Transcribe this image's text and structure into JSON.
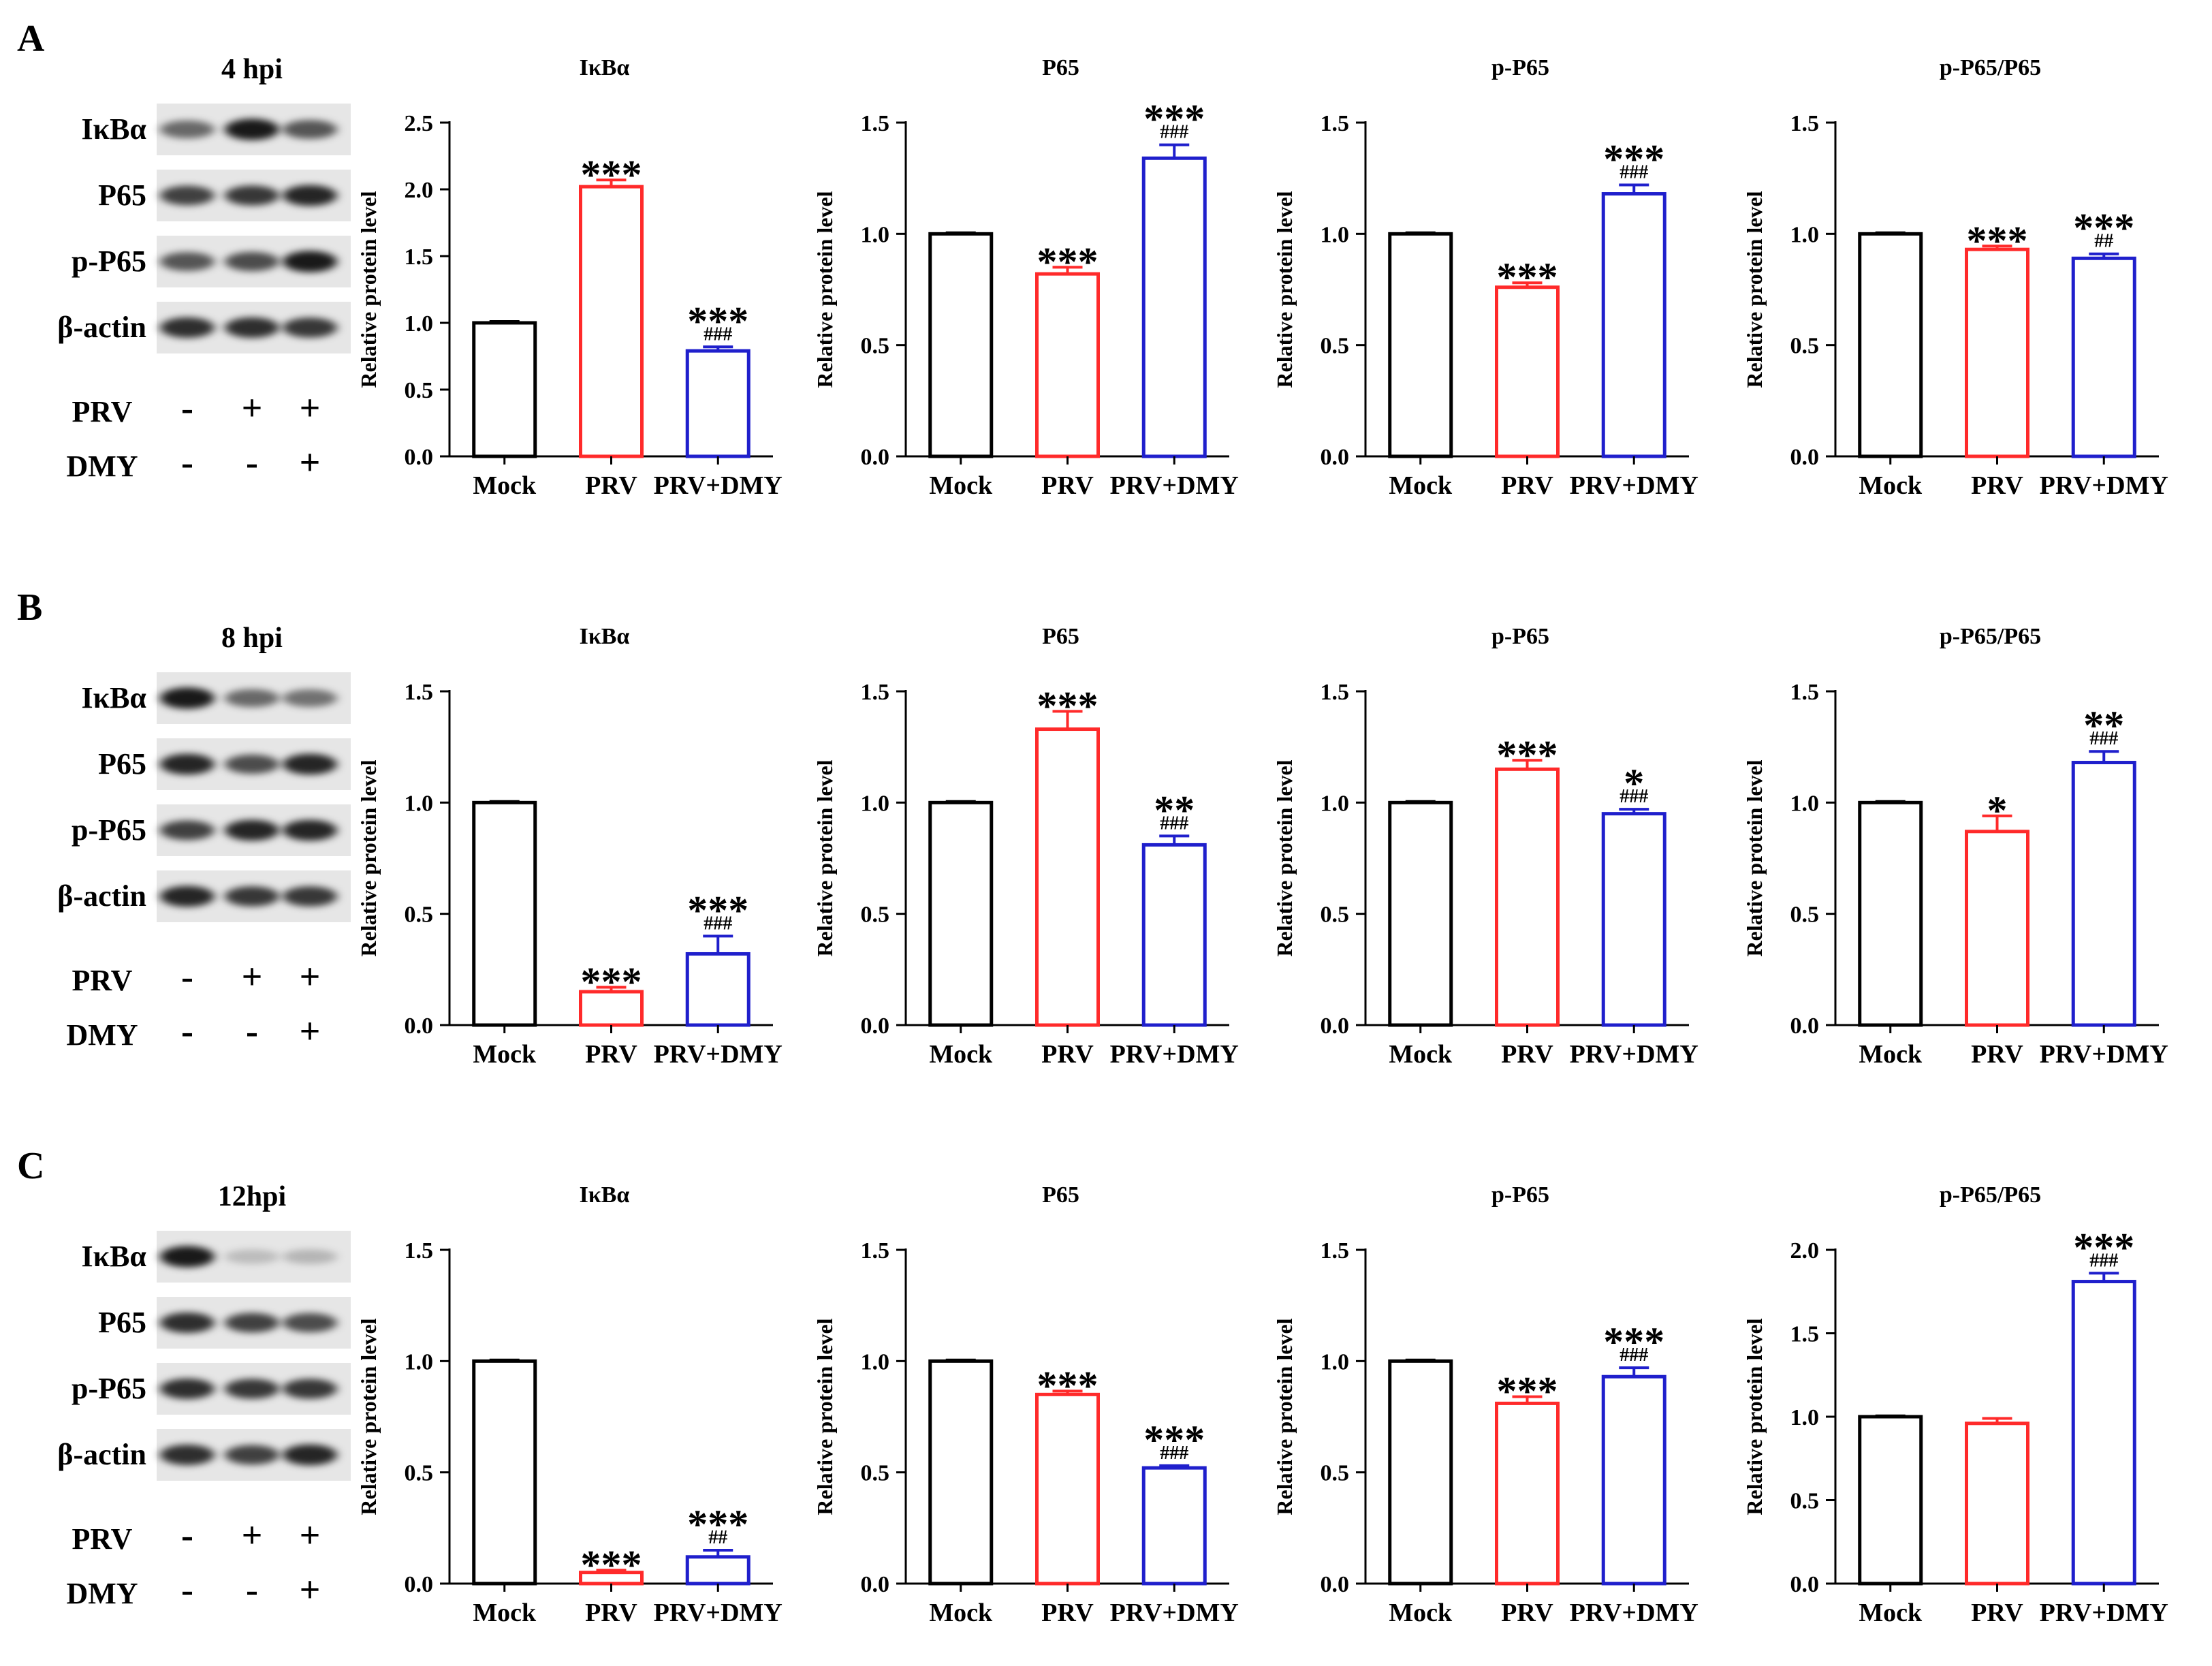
{
  "colors": {
    "Mock": "#000000",
    "PRV": "#ff2a2a",
    "PRV+DMY": "#1f1fcc"
  },
  "chart_data": [
    {
      "panel": "A",
      "timepoint": "4 hpi",
      "blot": {
        "rows": [
          "IκBα",
          "P65",
          "p-P65",
          "β-actin"
        ],
        "treatments": [
          {
            "name": "PRV",
            "signs": [
              "-",
              "+",
              "+"
            ]
          },
          {
            "name": "DMY",
            "signs": [
              "-",
              "-",
              "+"
            ]
          }
        ],
        "intensity": [
          [
            0.55,
            0.95,
            0.65
          ],
          [
            0.75,
            0.8,
            0.9
          ],
          [
            0.65,
            0.7,
            0.95
          ],
          [
            0.85,
            0.85,
            0.8
          ]
        ]
      },
      "charts": [
        {
          "type": "bar",
          "title": "IκBα",
          "ylabel": "Relative protein level",
          "ylim": [
            0,
            2.5
          ],
          "yticks": [
            "0.0",
            "0.5",
            "1.0",
            "1.5",
            "2.0",
            "2.5"
          ],
          "categories": [
            "Mock",
            "PRV",
            "PRV+DMY"
          ],
          "values": [
            1.0,
            2.02,
            0.79
          ],
          "errors": [
            0.01,
            0.05,
            0.03
          ],
          "stars": [
            "",
            "***",
            "***"
          ],
          "hashes": [
            "",
            "",
            "###"
          ]
        },
        {
          "type": "bar",
          "title": "P65",
          "ylabel": "Relative protein level",
          "ylim": [
            0,
            1.5
          ],
          "yticks": [
            "0.0",
            "0.5",
            "1.0",
            "1.5"
          ],
          "categories": [
            "Mock",
            "PRV",
            "PRV+DMY"
          ],
          "values": [
            1.0,
            0.82,
            1.34
          ],
          "errors": [
            0.005,
            0.03,
            0.06
          ],
          "stars": [
            "",
            "***",
            "***"
          ],
          "hashes": [
            "",
            "",
            "###"
          ]
        },
        {
          "type": "bar",
          "title": "p-P65",
          "ylabel": "Relative protein level",
          "ylim": [
            0,
            1.5
          ],
          "yticks": [
            "0.0",
            "0.5",
            "1.0",
            "1.5"
          ],
          "categories": [
            "Mock",
            "PRV",
            "PRV+DMY"
          ],
          "values": [
            1.0,
            0.76,
            1.18
          ],
          "errors": [
            0.005,
            0.02,
            0.04
          ],
          "stars": [
            "",
            "***",
            "***"
          ],
          "hashes": [
            "",
            "",
            "###"
          ]
        },
        {
          "type": "bar",
          "title": "p-P65/P65",
          "ylabel": "Relative protein level",
          "ylim": [
            0,
            1.5
          ],
          "yticks": [
            "0.0",
            "0.5",
            "1.0",
            "1.5"
          ],
          "categories": [
            "Mock",
            "PRV",
            "PRV+DMY"
          ],
          "values": [
            1.0,
            0.93,
            0.89
          ],
          "errors": [
            0.005,
            0.015,
            0.02
          ],
          "stars": [
            "",
            "***",
            "***"
          ],
          "hashes": [
            "",
            "",
            "##"
          ]
        }
      ]
    },
    {
      "panel": "B",
      "timepoint": "8 hpi",
      "blot": {
        "rows": [
          "IκBα",
          "P65",
          "p-P65",
          "β-actin"
        ],
        "treatments": [
          {
            "name": "PRV",
            "signs": [
              "-",
              "+",
              "+"
            ]
          },
          {
            "name": "DMY",
            "signs": [
              "-",
              "-",
              "+"
            ]
          }
        ],
        "intensity": [
          [
            0.95,
            0.55,
            0.5
          ],
          [
            0.9,
            0.7,
            0.9
          ],
          [
            0.75,
            0.9,
            0.9
          ],
          [
            0.9,
            0.8,
            0.8
          ]
        ]
      },
      "charts": [
        {
          "type": "bar",
          "title": "IκBα",
          "ylabel": "Relative protein level",
          "ylim": [
            0,
            1.5
          ],
          "yticks": [
            "0.0",
            "0.5",
            "1.0",
            "1.5"
          ],
          "categories": [
            "Mock",
            "PRV",
            "PRV+DMY"
          ],
          "values": [
            1.0,
            0.15,
            0.32
          ],
          "errors": [
            0.005,
            0.02,
            0.08
          ],
          "stars": [
            "",
            "***",
            "***"
          ],
          "hashes": [
            "",
            "",
            "###"
          ]
        },
        {
          "type": "bar",
          "title": "P65",
          "ylabel": "Relative protein level",
          "ylim": [
            0,
            1.5
          ],
          "yticks": [
            "0.0",
            "0.5",
            "1.0",
            "1.5"
          ],
          "categories": [
            "Mock",
            "PRV",
            "PRV+DMY"
          ],
          "values": [
            1.0,
            1.33,
            0.81
          ],
          "errors": [
            0.005,
            0.08,
            0.04
          ],
          "stars": [
            "",
            "***",
            "**"
          ],
          "hashes": [
            "",
            "",
            "###"
          ]
        },
        {
          "type": "bar",
          "title": "p-P65",
          "ylabel": "Relative protein level",
          "ylim": [
            0,
            1.5
          ],
          "yticks": [
            "0.0",
            "0.5",
            "1.0",
            "1.5"
          ],
          "categories": [
            "Mock",
            "PRV",
            "PRV+DMY"
          ],
          "values": [
            1.0,
            1.15,
            0.95
          ],
          "errors": [
            0.005,
            0.04,
            0.02
          ],
          "stars": [
            "",
            "***",
            "*"
          ],
          "hashes": [
            "",
            "",
            "###"
          ]
        },
        {
          "type": "bar",
          "title": "p-P65/P65",
          "ylabel": "Relative protein level",
          "ylim": [
            0,
            1.5
          ],
          "yticks": [
            "0.0",
            "0.5",
            "1.0",
            "1.5"
          ],
          "categories": [
            "Mock",
            "PRV",
            "PRV+DMY"
          ],
          "values": [
            1.0,
            0.87,
            1.18
          ],
          "errors": [
            0.005,
            0.07,
            0.05
          ],
          "stars": [
            "",
            "*",
            "**"
          ],
          "hashes": [
            "",
            "",
            "###"
          ]
        }
      ]
    },
    {
      "panel": "C",
      "timepoint": "12hpi",
      "blot": {
        "rows": [
          "IκBα",
          "P65",
          "p-P65",
          "β-actin"
        ],
        "treatments": [
          {
            "name": "PRV",
            "signs": [
              "-",
              "+",
              "+"
            ]
          },
          {
            "name": "DMY",
            "signs": [
              "-",
              "-",
              "+"
            ]
          }
        ],
        "intensity": [
          [
            0.95,
            0.12,
            0.15
          ],
          [
            0.85,
            0.75,
            0.7
          ],
          [
            0.85,
            0.8,
            0.8
          ],
          [
            0.85,
            0.75,
            0.9
          ]
        ]
      },
      "charts": [
        {
          "type": "bar",
          "title": "IκBα",
          "ylabel": "Relative protein level",
          "ylim": [
            0,
            1.5
          ],
          "yticks": [
            "0.0",
            "0.5",
            "1.0",
            "1.5"
          ],
          "categories": [
            "Mock",
            "PRV",
            "PRV+DMY"
          ],
          "values": [
            1.0,
            0.05,
            0.12
          ],
          "errors": [
            0.005,
            0.01,
            0.03
          ],
          "stars": [
            "",
            "***",
            "***"
          ],
          "hashes": [
            "",
            "",
            "##"
          ]
        },
        {
          "type": "bar",
          "title": "P65",
          "ylabel": "Relative protein level",
          "ylim": [
            0,
            1.5
          ],
          "yticks": [
            "0.0",
            "0.5",
            "1.0",
            "1.5"
          ],
          "categories": [
            "Mock",
            "PRV",
            "PRV+DMY"
          ],
          "values": [
            1.0,
            0.85,
            0.52
          ],
          "errors": [
            0.005,
            0.015,
            0.01
          ],
          "stars": [
            "",
            "***",
            "***"
          ],
          "hashes": [
            "",
            "",
            "###"
          ]
        },
        {
          "type": "bar",
          "title": "p-P65",
          "ylabel": "Relative protein level",
          "ylim": [
            0,
            1.5
          ],
          "yticks": [
            "0.0",
            "0.5",
            "1.0",
            "1.5"
          ],
          "categories": [
            "Mock",
            "PRV",
            "PRV+DMY"
          ],
          "values": [
            1.0,
            0.81,
            0.93
          ],
          "errors": [
            0.005,
            0.03,
            0.04
          ],
          "stars": [
            "",
            "***",
            "***"
          ],
          "hashes": [
            "",
            "",
            "###"
          ]
        },
        {
          "type": "bar",
          "title": "p-P65/P65",
          "ylabel": "Relative protein level",
          "ylim": [
            0,
            2.0
          ],
          "yticks": [
            "0.0",
            "0.5",
            "1.0",
            "1.5",
            "2.0"
          ],
          "categories": [
            "Mock",
            "PRV",
            "PRV+DMY"
          ],
          "values": [
            1.0,
            0.96,
            1.81
          ],
          "errors": [
            0.005,
            0.03,
            0.05
          ],
          "stars": [
            "",
            "",
            "***"
          ],
          "hashes": [
            "",
            "",
            "###"
          ]
        }
      ]
    }
  ]
}
